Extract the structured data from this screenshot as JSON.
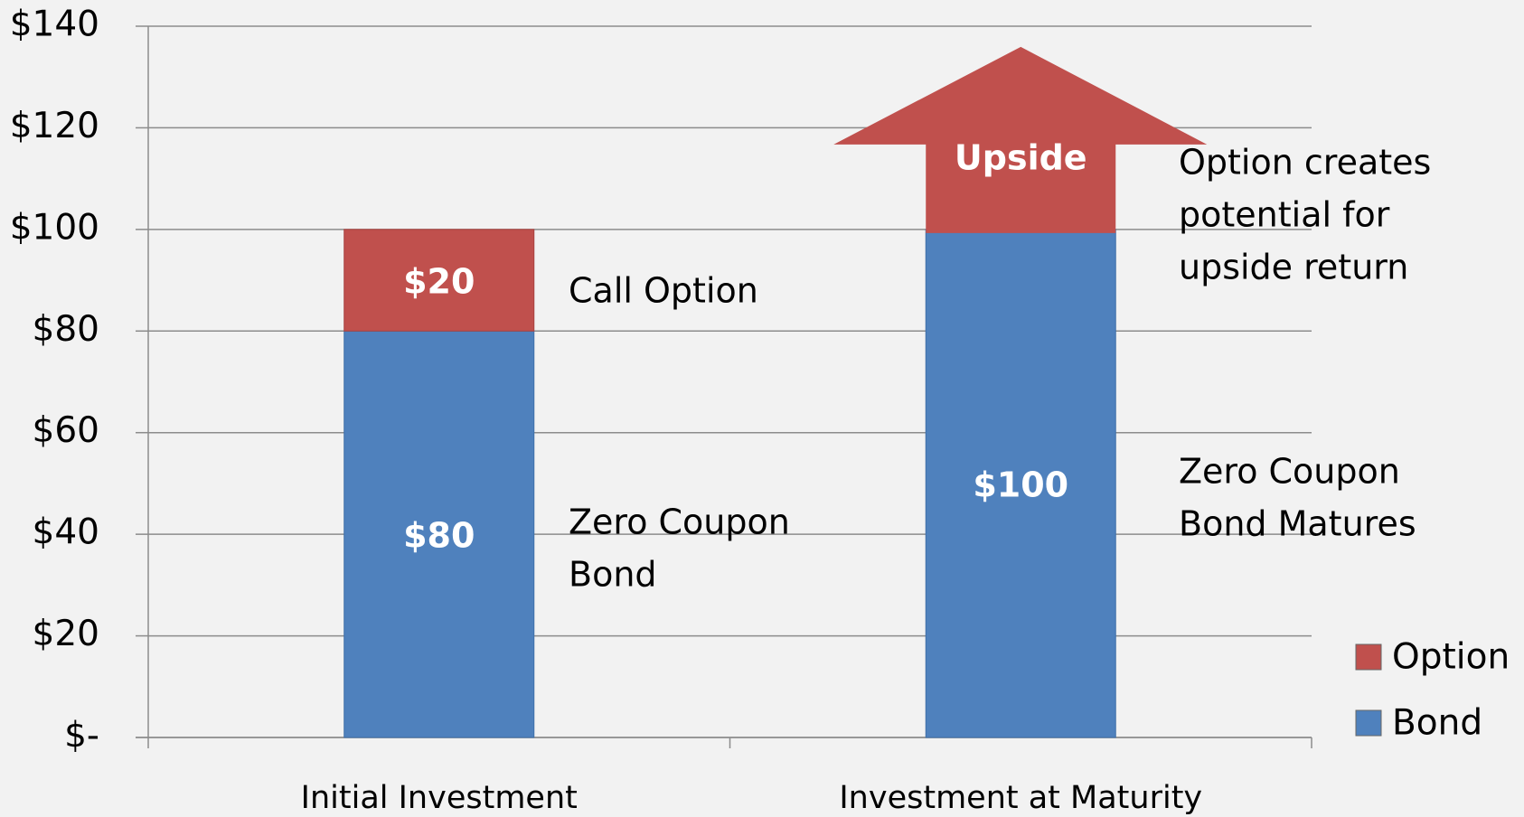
{
  "chart_data": {
    "type": "bar",
    "stacked": true,
    "categories": [
      "Initial Investment",
      "Investment at Maturity"
    ],
    "series": [
      {
        "name": "Bond",
        "color": "#4f81bd",
        "values": [
          80,
          100
        ],
        "value_labels": [
          "$80",
          "$100"
        ]
      },
      {
        "name": "Option",
        "color": "#c0504d",
        "values": [
          20,
          null
        ],
        "value_labels": [
          "$20",
          null
        ]
      }
    ],
    "ylim": [
      0,
      140
    ],
    "yticks": [
      {
        "value": 0,
        "label": "$-"
      },
      {
        "value": 20,
        "label": "$20"
      },
      {
        "value": 40,
        "label": "$40"
      },
      {
        "value": 60,
        "label": "$60"
      },
      {
        "value": 80,
        "label": "$80"
      },
      {
        "value": 100,
        "label": "$100"
      },
      {
        "value": 120,
        "label": "$120"
      },
      {
        "value": 140,
        "label": "$140"
      }
    ],
    "grid": true,
    "legend": "right",
    "annotations": [
      [
        "Call Option"
      ],
      [
        "Zero Coupon",
        "Bond"
      ],
      [
        "Option creates",
        "potential for",
        "upside return"
      ],
      [
        "Zero Coupon",
        "Bond Matures"
      ],
      [
        "Upside"
      ]
    ]
  }
}
